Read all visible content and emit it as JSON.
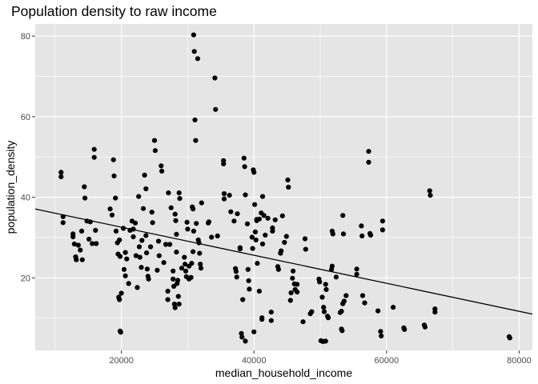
{
  "chart_data": {
    "type": "scatter",
    "title": "Population density to raw income",
    "xlabel": "median_household_income",
    "ylabel": "population_density",
    "xlim": [
      7000,
      82000
    ],
    "ylim": [
      2,
      83
    ],
    "xticks": [
      20000,
      40000,
      60000,
      80000
    ],
    "xtick_labels": [
      "20000",
      "40000",
      "60000",
      "80000"
    ],
    "yticks": [
      20,
      40,
      60,
      80
    ],
    "ytick_labels": [
      "20",
      "40",
      "60",
      "80"
    ],
    "x_minor": [
      10000,
      30000,
      50000,
      70000
    ],
    "y_minor": [
      10,
      30,
      50,
      70
    ],
    "grid": true,
    "background": "#e5e5e5",
    "grid_color": "#ffffff",
    "point_color": "#000000",
    "trend_line": {
      "x": [
        7000,
        82000
      ],
      "y": [
        37.1,
        11.0
      ],
      "color": "#000000"
    },
    "points": [
      [
        10900,
        46.2
      ],
      [
        10900,
        45.1
      ],
      [
        11200,
        35.2
      ],
      [
        11200,
        33.7
      ],
      [
        12700,
        30.9
      ],
      [
        12700,
        30.2
      ],
      [
        12900,
        28.4
      ],
      [
        13100,
        25.2
      ],
      [
        13200,
        24.5
      ],
      [
        13500,
        28.1
      ],
      [
        13800,
        26.9
      ],
      [
        14000,
        31.6
      ],
      [
        14100,
        24.5
      ],
      [
        14400,
        42.6
      ],
      [
        14500,
        39.8
      ],
      [
        14800,
        34.1
      ],
      [
        15100,
        29.6
      ],
      [
        15300,
        33.9
      ],
      [
        15600,
        28.5
      ],
      [
        15900,
        51.9
      ],
      [
        15900,
        49.9
      ],
      [
        16100,
        31.8
      ],
      [
        16200,
        28.5
      ],
      [
        18300,
        37.1
      ],
      [
        18600,
        35.6
      ],
      [
        18800,
        49.3
      ],
      [
        18900,
        45.3
      ],
      [
        19100,
        39.8
      ],
      [
        19200,
        31.6
      ],
      [
        19400,
        28.7
      ],
      [
        19500,
        25.9
      ],
      [
        19600,
        15.2
      ],
      [
        19700,
        14.6
      ],
      [
        19800,
        6.8
      ],
      [
        19900,
        6.5
      ],
      [
        19700,
        29.4
      ],
      [
        19800,
        25.3
      ],
      [
        20000,
        16.2
      ],
      [
        20300,
        32.3
      ],
      [
        20400,
        22.1
      ],
      [
        20600,
        26.3
      ],
      [
        20600,
        20.5
      ],
      [
        20800,
        24.7
      ],
      [
        21100,
        18.6
      ],
      [
        21300,
        31.8
      ],
      [
        21600,
        34.1
      ],
      [
        21800,
        32.1
      ],
      [
        21800,
        30.2
      ],
      [
        22100,
        33.6
      ],
      [
        22200,
        25.5
      ],
      [
        22400,
        17.6
      ],
      [
        22600,
        40.2
      ],
      [
        22700,
        27.7
      ],
      [
        22800,
        25.1
      ],
      [
        23000,
        22.6
      ],
      [
        23100,
        29.3
      ],
      [
        23300,
        37.2
      ],
      [
        23500,
        45.5
      ],
      [
        23700,
        42.1
      ],
      [
        23700,
        30.5
      ],
      [
        23800,
        26.2
      ],
      [
        23900,
        22.2
      ],
      [
        24000,
        20.4
      ],
      [
        24100,
        19.7
      ],
      [
        24400,
        27.7
      ],
      [
        24600,
        36.3
      ],
      [
        24700,
        33.7
      ],
      [
        25000,
        54.1
      ],
      [
        25100,
        51.6
      ],
      [
        25400,
        21.9
      ],
      [
        25600,
        29.1
      ],
      [
        25700,
        25.5
      ],
      [
        26000,
        47.8
      ],
      [
        26100,
        46.5
      ],
      [
        26400,
        23.8
      ],
      [
        26700,
        28.3
      ],
      [
        27000,
        16.7
      ],
      [
        27000,
        14.6
      ],
      [
        27100,
        41.1
      ],
      [
        27300,
        28.3
      ],
      [
        27500,
        37.4
      ],
      [
        27800,
        21.7
      ],
      [
        27800,
        19.7
      ],
      [
        27900,
        17.9
      ],
      [
        28000,
        13.5
      ],
      [
        28100,
        12.6
      ],
      [
        28100,
        35.8
      ],
      [
        28200,
        34.2
      ],
      [
        28300,
        30.8
      ],
      [
        28300,
        26.4
      ],
      [
        28400,
        18.6
      ],
      [
        28500,
        19.4
      ],
      [
        28600,
        15.4
      ],
      [
        28700,
        13.5
      ],
      [
        28700,
        41.1
      ],
      [
        28800,
        39.7
      ],
      [
        29100,
        22.4
      ],
      [
        29500,
        25.1
      ],
      [
        29600,
        23.4
      ],
      [
        29700,
        21.7
      ],
      [
        29800,
        20.3
      ],
      [
        29900,
        33.8
      ],
      [
        30000,
        32.1
      ],
      [
        30200,
        22.9
      ],
      [
        30200,
        19.7
      ],
      [
        30500,
        20.1
      ],
      [
        30600,
        23.6
      ],
      [
        30700,
        37.6
      ],
      [
        30800,
        37.1
      ],
      [
        30800,
        26.5
      ],
      [
        30900,
        31.6
      ],
      [
        30900,
        80.3
      ],
      [
        31000,
        76.2
      ],
      [
        31100,
        59.2
      ],
      [
        31200,
        54.1
      ],
      [
        31300,
        33.5
      ],
      [
        31500,
        74.4
      ],
      [
        31600,
        29.4
      ],
      [
        31700,
        28.7
      ],
      [
        31800,
        26.1
      ],
      [
        31900,
        23.4
      ],
      [
        32000,
        22.4
      ],
      [
        32100,
        38.6
      ],
      [
        33100,
        33.6
      ],
      [
        33200,
        33.9
      ],
      [
        33600,
        30.1
      ],
      [
        34100,
        69.6
      ],
      [
        34200,
        61.8
      ],
      [
        34500,
        30.4
      ],
      [
        35400,
        49.1
      ],
      [
        35400,
        48.3
      ],
      [
        35500,
        40.9
      ],
      [
        35500,
        39.6
      ],
      [
        36300,
        40.5
      ],
      [
        36500,
        36.4
      ],
      [
        37000,
        34.1
      ],
      [
        37200,
        22.3
      ],
      [
        37300,
        21.6
      ],
      [
        37400,
        20.2
      ],
      [
        37500,
        35.9
      ],
      [
        37900,
        27.5
      ],
      [
        37900,
        27.2
      ],
      [
        38100,
        6.2
      ],
      [
        38200,
        5.3
      ],
      [
        38300,
        14.6
      ],
      [
        38500,
        49.7
      ],
      [
        38600,
        47.6
      ],
      [
        38700,
        40.6
      ],
      [
        38700,
        4.3
      ],
      [
        39000,
        33.4
      ],
      [
        39100,
        22.1
      ],
      [
        39200,
        19.3
      ],
      [
        39300,
        17.2
      ],
      [
        39700,
        30.1
      ],
      [
        39800,
        27.3
      ],
      [
        39900,
        46.8
      ],
      [
        40000,
        46.2
      ],
      [
        40000,
        6.6
      ],
      [
        40100,
        38.2
      ],
      [
        40200,
        31.4
      ],
      [
        40300,
        29.4
      ],
      [
        40400,
        34.5
      ],
      [
        40400,
        34.2
      ],
      [
        40500,
        23.6
      ],
      [
        40800,
        34.6
      ],
      [
        40800,
        16.7
      ],
      [
        41100,
        36.1
      ],
      [
        41200,
        10.1
      ],
      [
        41200,
        9.7
      ],
      [
        41300,
        40.2
      ],
      [
        41300,
        28.4
      ],
      [
        41500,
        35.5
      ],
      [
        41700,
        30.6
      ],
      [
        42100,
        34.8
      ],
      [
        42600,
        11.5
      ],
      [
        42600,
        9.4
      ],
      [
        42800,
        32.4
      ],
      [
        42800,
        31.6
      ],
      [
        43200,
        34.4
      ],
      [
        43600,
        22.8
      ],
      [
        43700,
        22.1
      ],
      [
        44000,
        26.1
      ],
      [
        44100,
        26.7
      ],
      [
        44300,
        35.4
      ],
      [
        44600,
        28.8
      ],
      [
        44900,
        30.3
      ],
      [
        45100,
        44.3
      ],
      [
        45200,
        42.5
      ],
      [
        45500,
        14.4
      ],
      [
        45600,
        16.3
      ],
      [
        45800,
        19.9
      ],
      [
        45900,
        21.7
      ],
      [
        46100,
        18.5
      ],
      [
        46200,
        17.1
      ],
      [
        46500,
        18.4
      ],
      [
        46500,
        16.5
      ],
      [
        47400,
        9.1
      ],
      [
        47700,
        29.7
      ],
      [
        47800,
        27.1
      ],
      [
        48500,
        11.1
      ],
      [
        48700,
        11.6
      ],
      [
        49800,
        19.7
      ],
      [
        49900,
        19.0
      ],
      [
        50100,
        4.4
      ],
      [
        50300,
        15.2
      ],
      [
        50400,
        4.2
      ],
      [
        50500,
        12.7
      ],
      [
        50600,
        11.6
      ],
      [
        50800,
        4.3
      ],
      [
        50800,
        18.4
      ],
      [
        50900,
        17.1
      ],
      [
        51100,
        10.5
      ],
      [
        51200,
        10.1
      ],
      [
        51700,
        22.1
      ],
      [
        51800,
        22.9
      ],
      [
        51800,
        31.6
      ],
      [
        51900,
        30.9
      ],
      [
        52400,
        20.2
      ],
      [
        53000,
        11.4
      ],
      [
        53200,
        11.7
      ],
      [
        53200,
        7.3
      ],
      [
        53300,
        6.9
      ],
      [
        53400,
        13.6
      ],
      [
        53400,
        35.5
      ],
      [
        53500,
        30.9
      ],
      [
        53600,
        14.2
      ],
      [
        53900,
        15.6
      ],
      [
        55500,
        20.9
      ],
      [
        55500,
        22.2
      ],
      [
        56200,
        32.9
      ],
      [
        56300,
        30.4
      ],
      [
        56400,
        15.6
      ],
      [
        56700,
        13.8
      ],
      [
        57300,
        51.4
      ],
      [
        57300,
        48.7
      ],
      [
        57500,
        31.0
      ],
      [
        57600,
        30.6
      ],
      [
        58700,
        11.8
      ],
      [
        59100,
        6.7
      ],
      [
        59200,
        5.6
      ],
      [
        59400,
        34.1
      ],
      [
        59400,
        31.9
      ],
      [
        61000,
        12.7
      ],
      [
        62600,
        7.6
      ],
      [
        62700,
        7.2
      ],
      [
        65700,
        8.3
      ],
      [
        65800,
        7.8
      ],
      [
        66500,
        41.6
      ],
      [
        66600,
        40.5
      ],
      [
        67300,
        12.3
      ],
      [
        67300,
        11.5
      ],
      [
        78500,
        5.4
      ],
      [
        78600,
        5.1
      ]
    ]
  }
}
